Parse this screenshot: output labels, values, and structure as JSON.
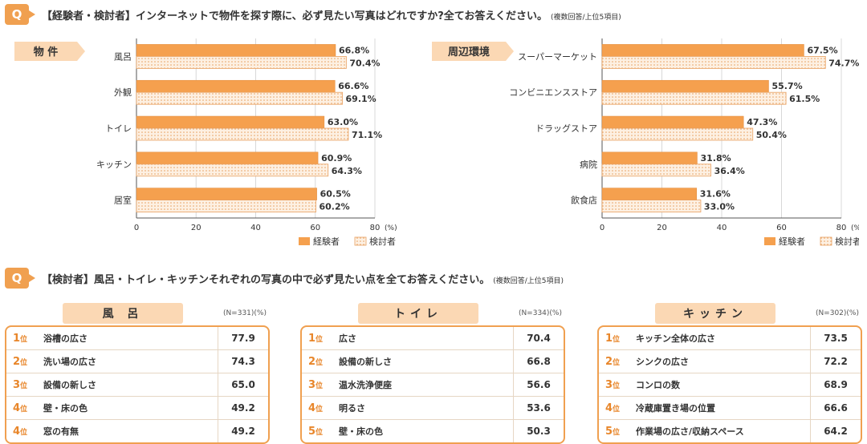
{
  "q1": {
    "badge": "Q",
    "text": "【経験者・検討者】インターネットで物件を探す際に、必ず見たい写真はどれですか?全てお答えください。",
    "note": "(複数回答/上位5項目)"
  },
  "q2": {
    "badge": "Q",
    "text": "【検討者】風呂・トイレ・キッチンそれぞれの写真の中で必ず見たい点を全てお答えください。",
    "note": "(複数回答/上位5項目)"
  },
  "chart_data": [
    {
      "type": "bar",
      "orientation": "horizontal",
      "title": "物 件",
      "categories": [
        "風呂",
        "外観",
        "トイレ",
        "キッチン",
        "居室"
      ],
      "series": [
        {
          "name": "経験者",
          "values": [
            66.8,
            66.6,
            63.0,
            60.9,
            60.5
          ],
          "labels": [
            "66.8%",
            "66.6%",
            "63.0%",
            "60.9%",
            "60.5%"
          ]
        },
        {
          "name": "検討者",
          "values": [
            70.4,
            69.1,
            71.1,
            64.3,
            60.2
          ],
          "labels": [
            "70.4%",
            "69.1%",
            "71.1%",
            "64.3%",
            "60.2%"
          ]
        }
      ],
      "xlim": [
        0,
        80
      ],
      "ticks": [
        "0",
        "20",
        "40",
        "60",
        "80"
      ],
      "unit_label": "(%)",
      "legend": "bottom-right"
    },
    {
      "type": "bar",
      "orientation": "horizontal",
      "title": "周辺環境",
      "categories": [
        "スーパーマーケット",
        "コンビニエンスストア",
        "ドラッグストア",
        "病院",
        "飲食店"
      ],
      "series": [
        {
          "name": "経験者",
          "values": [
            67.5,
            55.7,
            47.3,
            31.8,
            31.6
          ],
          "labels": [
            "67.5%",
            "55.7%",
            "47.3%",
            "31.8%",
            "31.6%"
          ]
        },
        {
          "name": "検討者",
          "values": [
            74.7,
            61.5,
            50.4,
            36.4,
            33.0
          ],
          "labels": [
            "74.7%",
            "61.5%",
            "50.4%",
            "36.4%",
            "33.0%"
          ]
        }
      ],
      "xlim": [
        0,
        80
      ],
      "ticks": [
        "0",
        "20",
        "40",
        "60",
        "80"
      ],
      "unit_label": "(%)",
      "legend": "bottom-right"
    },
    {
      "type": "table",
      "title": "風 呂",
      "n": "(N=331)(%)",
      "rows": [
        {
          "rank": "1",
          "suffix": "位",
          "item": "浴槽の広さ",
          "value": "77.9"
        },
        {
          "rank": "2",
          "suffix": "位",
          "item": "洗い場の広さ",
          "value": "74.3"
        },
        {
          "rank": "3",
          "suffix": "位",
          "item": "設備の新しさ",
          "value": "65.0"
        },
        {
          "rank": "4",
          "suffix": "位",
          "item": "壁・床の色",
          "value": "49.2"
        },
        {
          "rank": "4",
          "suffix": "位",
          "item": "窓の有無",
          "value": "49.2"
        }
      ]
    },
    {
      "type": "table",
      "title": "トイレ",
      "n": "(N=334)(%)",
      "rows": [
        {
          "rank": "1",
          "suffix": "位",
          "item": "広さ",
          "value": "70.4"
        },
        {
          "rank": "2",
          "suffix": "位",
          "item": "設備の新しさ",
          "value": "66.8"
        },
        {
          "rank": "3",
          "suffix": "位",
          "item": "温水洗浄便座",
          "value": "56.6"
        },
        {
          "rank": "4",
          "suffix": "位",
          "item": "明るさ",
          "value": "53.6"
        },
        {
          "rank": "5",
          "suffix": "位",
          "item": "壁・床の色",
          "value": "50.3"
        }
      ]
    },
    {
      "type": "table",
      "title": "キッチン",
      "n": "(N=302)(%)",
      "rows": [
        {
          "rank": "1",
          "suffix": "位",
          "item": "キッチン全体の広さ",
          "value": "73.5"
        },
        {
          "rank": "2",
          "suffix": "位",
          "item": "シンクの広さ",
          "value": "72.2"
        },
        {
          "rank": "3",
          "suffix": "位",
          "item": "コンロの数",
          "value": "68.9"
        },
        {
          "rank": "4",
          "suffix": "位",
          "item": "冷蔵庫置き場の位置",
          "value": "66.6"
        },
        {
          "rank": "5",
          "suffix": "位",
          "item": "作業場の広さ/収納スペース",
          "value": "64.2"
        }
      ]
    }
  ],
  "colors": {
    "accent": "#f0a050",
    "experienced_bar": "#f5a04e",
    "considering_fill": "#fdf0e2",
    "considering_dot": "#e8a060",
    "label_bg": "#fbd8b4",
    "rank_text": "#e8862a"
  }
}
